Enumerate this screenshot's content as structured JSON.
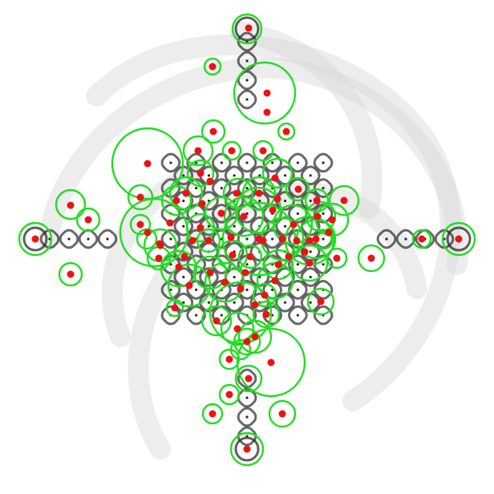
{
  "image": {
    "background_color": "#ffffff",
    "watermark_color": "#d8d8d8",
    "pattern_color": "#2a2a2a",
    "circle_color": "#22dd22",
    "dot_color": "#ee1111"
  },
  "detections": {
    "circle_count": 72,
    "dot_count": 84
  }
}
